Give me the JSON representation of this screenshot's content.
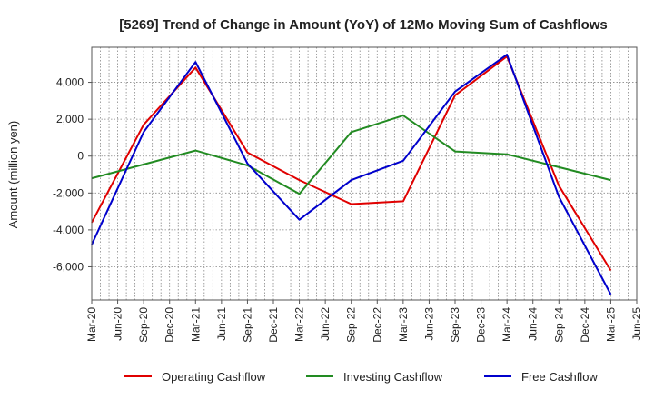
{
  "chart_data": {
    "type": "line",
    "title": "[5269]  Trend of Change in Amount (YoY) of 12Mo Moving Sum of Cashflows",
    "xlabel": "",
    "ylabel": "Amount (million yen)",
    "ylim": [
      -7800,
      5900
    ],
    "yticks": [
      4000,
      2000,
      0,
      -2000,
      -4000,
      -6000
    ],
    "ytick_labels": [
      "4,000",
      "2,000",
      "0",
      "-2,000",
      "-4,000",
      "-6,000"
    ],
    "categories": [
      "Mar-20",
      "Jun-20",
      "Sep-20",
      "Dec-20",
      "Mar-21",
      "Jun-21",
      "Sep-21",
      "Dec-21",
      "Mar-22",
      "Jun-22",
      "Sep-22",
      "Dec-22",
      "Mar-23",
      "Jun-23",
      "Sep-23",
      "Dec-23",
      "Mar-24",
      "Jun-24",
      "Sep-24",
      "Dec-24",
      "Mar-25",
      "Jun-25"
    ],
    "grid": true,
    "legend_position": "bottom",
    "series": [
      {
        "name": "Operating Cashflow",
        "color": "#e00000",
        "points": [
          [
            "Mar-20",
            -3600
          ],
          [
            "Sep-20",
            1700
          ],
          [
            "Mar-21",
            4800
          ],
          [
            "Sep-21",
            200
          ],
          [
            "Mar-22",
            -1300
          ],
          [
            "Sep-22",
            -2600
          ],
          [
            "Mar-23",
            -2450
          ],
          [
            "Sep-23",
            3300
          ],
          [
            "Mar-24",
            5400
          ],
          [
            "Sep-24",
            -1600
          ],
          [
            "Mar-25",
            -6200
          ]
        ]
      },
      {
        "name": "Investing Cashflow",
        "color": "#228b22",
        "points": [
          [
            "Mar-20",
            -1200
          ],
          [
            "Sep-20",
            -450
          ],
          [
            "Mar-21",
            300
          ],
          [
            "Sep-21",
            -500
          ],
          [
            "Mar-22",
            -2050
          ],
          [
            "Sep-22",
            1300
          ],
          [
            "Mar-23",
            2200
          ],
          [
            "Sep-23",
            250
          ],
          [
            "Mar-24",
            100
          ],
          [
            "Sep-24",
            -600
          ],
          [
            "Mar-25",
            -1300
          ]
        ]
      },
      {
        "name": "Free Cashflow",
        "color": "#0000cc",
        "points": [
          [
            "Mar-20",
            -4800
          ],
          [
            "Sep-20",
            1300
          ],
          [
            "Mar-21",
            5100
          ],
          [
            "Sep-21",
            -400
          ],
          [
            "Mar-22",
            -3450
          ],
          [
            "Sep-22",
            -1300
          ],
          [
            "Mar-23",
            -250
          ],
          [
            "Sep-23",
            3500
          ],
          [
            "Mar-24",
            5500
          ],
          [
            "Sep-24",
            -2200
          ],
          [
            "Mar-25",
            -7500
          ]
        ]
      }
    ]
  }
}
